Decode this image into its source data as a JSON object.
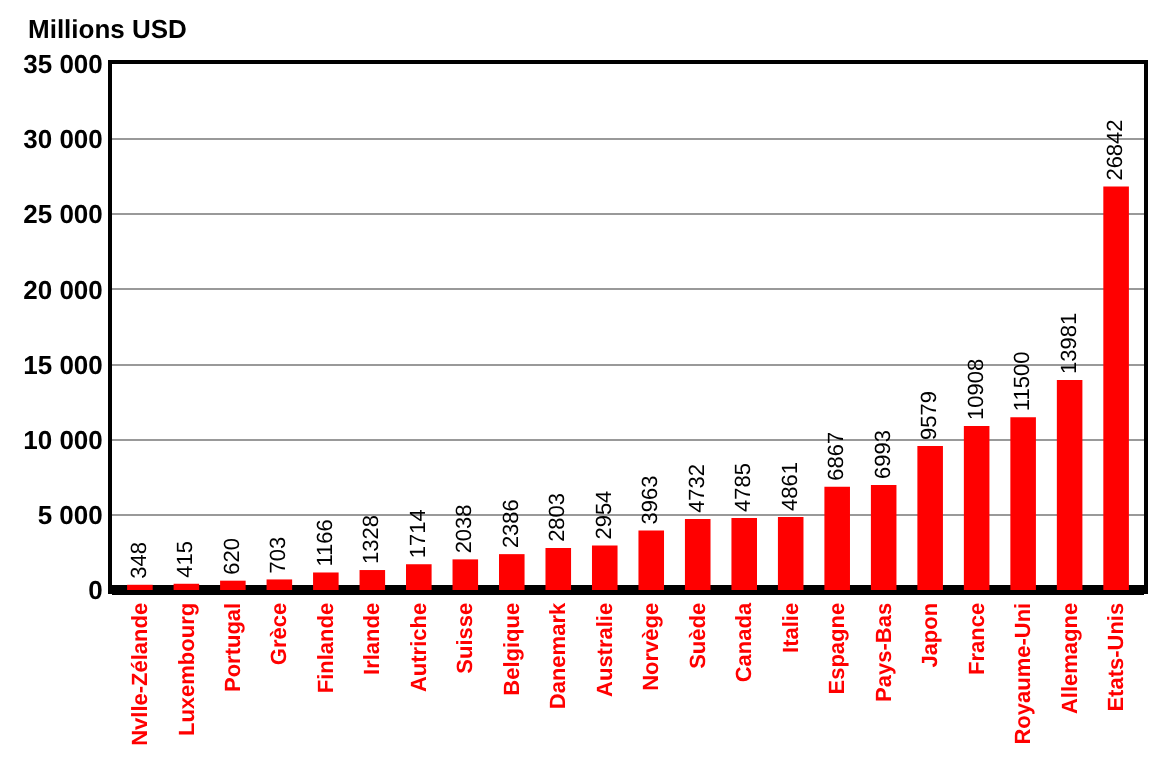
{
  "chart_data": {
    "type": "bar",
    "ylabel": "Millions USD",
    "categories": [
      "Nvlle-Zélande",
      "Luxembourg",
      "Portugal",
      "Grèce",
      "Finlande",
      "Irlande",
      "Autriche",
      "Suisse",
      "Belgique",
      "Danemark",
      "Australie",
      "Norvège",
      "Suède",
      "Canada",
      "Italie",
      "Espagne",
      "Pays-Bas",
      "Japon",
      "France",
      "Royaume-Uni",
      "Allemagne",
      "Etats-Unis"
    ],
    "values": [
      348,
      415,
      620,
      703,
      1166,
      1328,
      1714,
      2038,
      2386,
      2803,
      2954,
      3963,
      4732,
      4785,
      4861,
      6867,
      6993,
      9579,
      10908,
      11500,
      13981,
      26842
    ],
    "color": "#ff0000",
    "ylim": [
      0,
      35000
    ],
    "yticks": [
      0,
      {
        "value": 5000,
        "label": "5 000"
      },
      {
        "value": 10000,
        "label": "10 000"
      },
      {
        "value": 15000,
        "label": "15 000"
      },
      {
        "value": 20000,
        "label": "20 000"
      },
      {
        "value": 25000,
        "label": "25 000"
      },
      {
        "value": 30000,
        "label": "30 000"
      },
      {
        "value": 35000,
        "label": "35 000"
      }
    ],
    "grid": "y",
    "data_labels": true
  }
}
